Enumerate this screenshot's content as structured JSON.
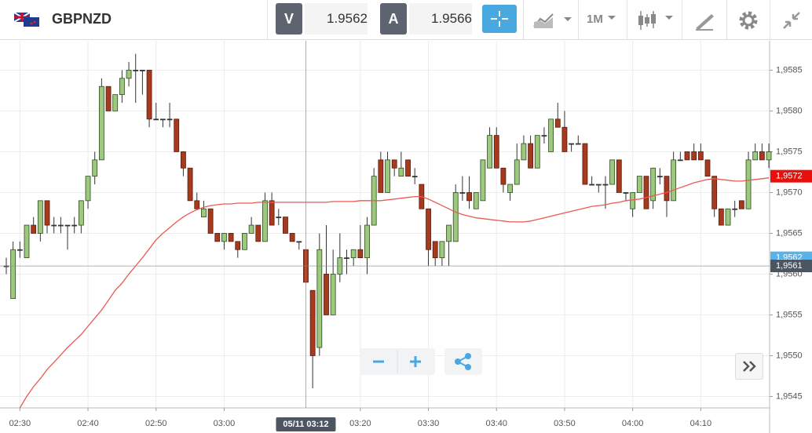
{
  "toolbar": {
    "symbol": "GBPNZD",
    "bid_label": "V",
    "bid": "1.9562",
    "ask_label": "A",
    "ask": "1.9566",
    "timeframe": "1M"
  },
  "chart_data": {
    "type": "candlestick",
    "x": [
      "02:28",
      "02:29",
      "02:30",
      "02:31",
      "02:32",
      "02:33",
      "02:34",
      "02:35",
      "02:36",
      "02:37",
      "02:38",
      "02:39",
      "02:40",
      "02:41",
      "02:42",
      "02:43",
      "02:44",
      "02:45",
      "02:46",
      "02:47",
      "02:48",
      "02:49",
      "02:50",
      "02:51",
      "02:52",
      "02:53",
      "02:54",
      "02:55",
      "02:56",
      "02:57",
      "02:58",
      "02:59",
      "03:00",
      "03:01",
      "03:02",
      "03:03",
      "03:04",
      "03:05",
      "03:06",
      "03:07",
      "03:08",
      "03:09",
      "03:10",
      "03:11",
      "03:12",
      "03:13",
      "03:14",
      "03:15",
      "03:16",
      "03:17",
      "03:18",
      "03:19",
      "03:20",
      "03:21",
      "03:22",
      "03:23",
      "03:24",
      "03:25",
      "03:26",
      "03:27",
      "03:28",
      "03:29",
      "03:30",
      "03:31",
      "03:32",
      "03:33",
      "03:34",
      "03:35",
      "03:36",
      "03:37",
      "03:38",
      "03:39",
      "03:40",
      "03:41",
      "03:42",
      "03:43",
      "03:44",
      "03:45",
      "03:46",
      "03:47",
      "03:48",
      "03:49",
      "03:50",
      "03:51",
      "03:52",
      "03:53",
      "03:54",
      "03:55",
      "03:56",
      "03:57",
      "03:58",
      "03:59",
      "04:00",
      "04:01",
      "04:02",
      "04:03",
      "04:04",
      "04:05",
      "04:06",
      "04:07",
      "04:08",
      "04:09",
      "04:10",
      "04:11",
      "04:12",
      "04:13",
      "04:14",
      "04:15",
      "04:16",
      "04:17",
      "04:18",
      "04:19",
      "04:20"
    ],
    "open": [
      1.9561,
      1.9557,
      1.9563,
      1.9562,
      1.9566,
      1.9565,
      1.9569,
      1.9566,
      1.9566,
      1.9566,
      1.9566,
      1.9566,
      1.9569,
      1.9572,
      1.9574,
      1.9583,
      1.958,
      1.9582,
      1.9584,
      1.9585,
      1.9585,
      1.9585,
      1.9579,
      1.9579,
      1.9579,
      1.9579,
      1.9575,
      1.9573,
      1.9569,
      1.9567,
      1.9568,
      1.9565,
      1.9564,
      1.9565,
      1.9564,
      1.9563,
      1.9565,
      1.9566,
      1.9564,
      1.9569,
      1.9567,
      1.9567,
      1.9565,
      1.9564,
      1.9563,
      1.9558,
      1.9551,
      1.956,
      1.9555,
      1.956,
      1.9562,
      1.9562,
      1.9563,
      1.9562,
      1.9566,
      1.9574,
      1.957,
      1.9574,
      1.9572,
      1.9574,
      1.9572,
      1.9571,
      1.9568,
      1.9564,
      1.9562,
      1.9564,
      1.9564,
      1.957,
      1.957,
      1.9568,
      1.9569,
      1.9573,
      1.9577,
      1.9573,
      1.957,
      1.9571,
      1.9574,
      1.9576,
      1.9573,
      1.9577,
      1.9575,
      1.9579,
      1.9578,
      1.9576,
      1.9576,
      1.9576,
      1.9571,
      1.9571,
      1.9571,
      1.9571,
      1.9574,
      1.957,
      1.9568,
      1.957,
      1.9572,
      1.9569,
      1.9572,
      1.9572,
      1.9569,
      1.9574,
      1.9575,
      1.9575,
      1.9575,
      1.9574,
      1.9572,
      1.9568,
      1.9566,
      1.9568,
      1.9569,
      1.9568,
      1.9574,
      1.9575,
      1.9574
    ],
    "high": [
      1.9562,
      1.9564,
      1.9564,
      1.9566,
      1.9567,
      1.9569,
      1.9569,
      1.9567,
      1.9567,
      1.9566,
      1.9567,
      1.9569,
      1.9572,
      1.9575,
      1.9584,
      1.9583,
      1.9582,
      1.9585,
      1.9586,
      1.9587,
      1.9585,
      1.9585,
      1.9581,
      1.9579,
      1.9581,
      1.9579,
      1.9575,
      1.9573,
      1.957,
      1.9569,
      1.9568,
      1.9565,
      1.9565,
      1.9565,
      1.9564,
      1.9565,
      1.9567,
      1.9566,
      1.957,
      1.957,
      1.9568,
      1.9567,
      1.9565,
      1.9564,
      1.9563,
      1.9558,
      1.9565,
      1.9566,
      1.9563,
      1.9565,
      1.9563,
      1.9563,
      1.9566,
      1.9567,
      1.9573,
      1.9575,
      1.9575,
      1.9574,
      1.9575,
      1.9574,
      1.9573,
      1.9571,
      1.9568,
      1.9564,
      1.9564,
      1.9566,
      1.9571,
      1.9572,
      1.9572,
      1.957,
      1.9574,
      1.9578,
      1.9578,
      1.9573,
      1.9571,
      1.9576,
      1.9577,
      1.9577,
      1.9577,
      1.9578,
      1.9579,
      1.9581,
      1.958,
      1.9576,
      1.9577,
      1.9576,
      1.9572,
      1.9571,
      1.9572,
      1.9574,
      1.9574,
      1.957,
      1.957,
      1.9572,
      1.9572,
      1.9573,
      1.9573,
      1.9572,
      1.9575,
      1.9575,
      1.9575,
      1.9576,
      1.9576,
      1.9574,
      1.9572,
      1.9568,
      1.9568,
      1.9569,
      1.9569,
      1.9575,
      1.9576,
      1.9576,
      1.9576
    ],
    "low": [
      1.956,
      1.9557,
      1.9562,
      1.9562,
      1.9565,
      1.9564,
      1.9565,
      1.9565,
      1.9565,
      1.9563,
      1.9565,
      1.9565,
      1.9568,
      1.9571,
      1.9574,
      1.958,
      1.958,
      1.9581,
      1.9583,
      1.9581,
      1.9582,
      1.9578,
      1.9579,
      1.9578,
      1.9578,
      1.9575,
      1.9572,
      1.9569,
      1.9568,
      1.9567,
      1.9565,
      1.9564,
      1.9563,
      1.9564,
      1.9562,
      1.9563,
      1.9565,
      1.9564,
      1.9564,
      1.9566,
      1.9566,
      1.9565,
      1.9564,
      1.9563,
      1.9559,
      1.9546,
      1.955,
      1.9555,
      1.9555,
      1.9559,
      1.956,
      1.9561,
      1.9562,
      1.956,
      1.9566,
      1.957,
      1.957,
      1.9572,
      1.9572,
      1.9572,
      1.9571,
      1.9568,
      1.9561,
      1.9561,
      1.9561,
      1.9561,
      1.9564,
      1.9569,
      1.9568,
      1.9568,
      1.9569,
      1.9573,
      1.9573,
      1.957,
      1.9569,
      1.9571,
      1.9574,
      1.9573,
      1.9573,
      1.9576,
      1.9575,
      1.9578,
      1.9575,
      1.9575,
      1.9576,
      1.9571,
      1.9571,
      1.957,
      1.9568,
      1.9571,
      1.957,
      1.9569,
      1.9567,
      1.957,
      1.9568,
      1.9568,
      1.9571,
      1.9567,
      1.9569,
      1.9574,
      1.9574,
      1.9574,
      1.9574,
      1.9572,
      1.9567,
      1.9566,
      1.9566,
      1.9567,
      1.9568,
      1.9568,
      1.9574,
      1.9574,
      1.9573
    ],
    "close": [
      1.9561,
      1.9563,
      1.9563,
      1.9566,
      1.9565,
      1.9569,
      1.9566,
      1.9566,
      1.9566,
      1.9566,
      1.9566,
      1.9569,
      1.9572,
      1.9574,
      1.9583,
      1.958,
      1.9582,
      1.9584,
      1.9585,
      1.9585,
      1.9585,
      1.9579,
      1.9579,
      1.9579,
      1.9579,
      1.9575,
      1.9573,
      1.9569,
      1.9568,
      1.9568,
      1.9565,
      1.9564,
      1.9565,
      1.9564,
      1.9563,
      1.9565,
      1.9566,
      1.9564,
      1.9569,
      1.9566,
      1.9567,
      1.9565,
      1.9564,
      1.9564,
      1.9559,
      1.955,
      1.9563,
      1.9555,
      1.956,
      1.9562,
      1.9562,
      1.9563,
      1.9562,
      1.9566,
      1.9572,
      1.957,
      1.9574,
      1.9573,
      1.9573,
      1.9572,
      1.9572,
      1.9568,
      1.9563,
      1.9562,
      1.9564,
      1.9566,
      1.957,
      1.957,
      1.9569,
      1.957,
      1.9574,
      1.9577,
      1.9573,
      1.9571,
      1.9571,
      1.9574,
      1.9576,
      1.9573,
      1.9577,
      1.9577,
      1.9579,
      1.9578,
      1.9575,
      1.9576,
      1.9576,
      1.9571,
      1.9571,
      1.9571,
      1.9571,
      1.9574,
      1.957,
      1.957,
      1.957,
      1.9572,
      1.9568,
      1.9573,
      1.9572,
      1.9569,
      1.9574,
      1.9574,
      1.9574,
      1.9574,
      1.9574,
      1.9572,
      1.9568,
      1.9566,
      1.9568,
      1.9568,
      1.9568,
      1.9574,
      1.9575,
      1.9574,
      1.9575
    ],
    "up_color": "#9cc97d",
    "down_color": "#a63a1f",
    "moving_average": {
      "color": "#ea5a52",
      "values": [
        null,
        null,
        1.95436,
        1.9545,
        1.95462,
        1.95472,
        1.95483,
        1.95492,
        1.95501,
        1.9551,
        1.95518,
        1.95526,
        1.95536,
        1.95546,
        1.95556,
        1.95568,
        1.9558,
        1.95589,
        1.956,
        1.9561,
        1.9562,
        1.95631,
        1.95642,
        1.9565,
        1.95657,
        1.95664,
        1.9567,
        1.95675,
        1.95679,
        1.95682,
        1.95684,
        1.95685,
        1.95686,
        1.95686,
        1.95687,
        1.95687,
        1.95687,
        1.95688,
        1.95688,
        1.95688,
        1.95688,
        1.95688,
        1.95688,
        1.95688,
        1.95688,
        1.95688,
        1.95688,
        1.95688,
        1.95689,
        1.95689,
        1.95689,
        1.95689,
        1.9569,
        1.9569,
        1.9569,
        1.9569,
        1.95691,
        1.95692,
        1.95693,
        1.95694,
        1.95695,
        1.95695,
        1.95692,
        1.95688,
        1.95684,
        1.9568,
        1.95676,
        1.95673,
        1.95671,
        1.95669,
        1.95668,
        1.95667,
        1.95666,
        1.95665,
        1.95664,
        1.95664,
        1.95664,
        1.95665,
        1.95667,
        1.95669,
        1.95671,
        1.95673,
        1.95675,
        1.95677,
        1.95679,
        1.95681,
        1.95683,
        1.95684,
        1.95685,
        1.95687,
        1.95688,
        1.9569,
        1.95691,
        1.95692,
        1.95694,
        1.95696,
        1.95698,
        1.957,
        1.95703,
        1.95706,
        1.95709,
        1.95712,
        1.95714,
        1.95716,
        1.95717,
        1.95716,
        1.95715,
        1.95714,
        1.95714,
        1.95715,
        1.95716,
        1.95717,
        1.95718
      ]
    },
    "ylim": [
      1.95436,
      1.95886
    ],
    "yticks": [
      {
        "value": 1.9545,
        "label": "1,9545"
      },
      {
        "value": 1.955,
        "label": "1,9550"
      },
      {
        "value": 1.9555,
        "label": "1,9555"
      },
      {
        "value": 1.956,
        "label": "1,9560"
      },
      {
        "value": 1.9565,
        "label": "1,9565"
      },
      {
        "value": 1.957,
        "label": "1,9570"
      },
      {
        "value": 1.9575,
        "label": "1,9575"
      },
      {
        "value": 1.958,
        "label": "1,9580"
      },
      {
        "value": 1.9585,
        "label": "1,9585"
      }
    ],
    "xticks": [
      "02:30",
      "02:40",
      "02:50",
      "03:00",
      "03:20",
      "03:30",
      "03:40",
      "03:50",
      "04:00",
      "04:10"
    ],
    "grid": true,
    "price_tags": [
      {
        "value": 1.9572,
        "label": "1,9572",
        "color": "#e8100c"
      },
      {
        "value": 1.9562,
        "label": "1,9562",
        "color": "#5ab3e8"
      },
      {
        "value": 1.9561,
        "label": "1,9561",
        "color": "#4d5560"
      }
    ],
    "crosshair_label": "05/11 03:12"
  }
}
